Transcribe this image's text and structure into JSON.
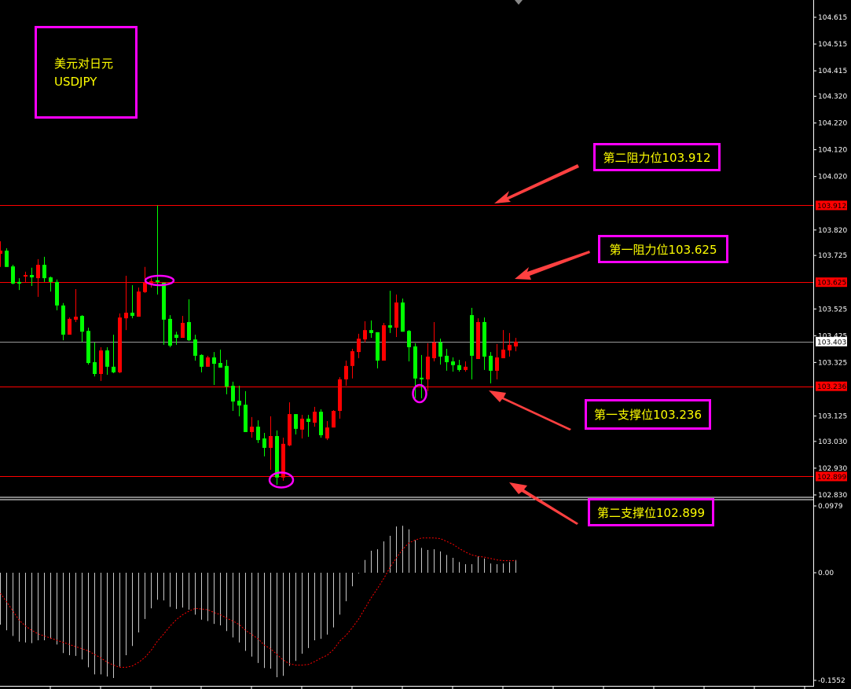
{
  "title_box": {
    "line1": "美元对日元",
    "line2": "USDJPY"
  },
  "levels": [
    {
      "label": "第二阻力位103.912",
      "price": 103.912,
      "tag": "103.912",
      "color": "#ff0000"
    },
    {
      "label": "第一阻力位103.625",
      "price": 103.625,
      "tag": "103.625",
      "color": "#ff0000"
    },
    {
      "label": "第一支撑位103.236",
      "price": 103.236,
      "tag": "103.236",
      "color": "#ff0000"
    },
    {
      "label": "第二支撑位102.899",
      "price": 102.899,
      "tag": "102.899",
      "color": "#ff0000"
    }
  ],
  "current_price": {
    "value": 103.403,
    "tag": "103.403"
  },
  "colors": {
    "bull": "#ff0000",
    "bear": "#00ff00",
    "background": "#000000",
    "label_border": "#ff00ff",
    "label_text": "#ffff00",
    "arrow": "#ff4040",
    "highlight_ellipse": "#ff00ff",
    "histogram": "#c8c8c8",
    "signal": "#ff0000"
  },
  "chart_data": [
    {
      "type": "candlestick",
      "symbol": "USDJPY",
      "ylim": [
        102.83,
        104.615
      ],
      "yticks": [
        "104.615",
        "104.515",
        "104.415",
        "104.320",
        "104.220",
        "104.120",
        "104.020",
        "103.820",
        "103.725",
        "103.525",
        "103.425",
        "103.325",
        "103.125",
        "103.030",
        "102.930",
        "102.830"
      ],
      "ohlc": [
        [
          103.731,
          103.778,
          103.682,
          103.743
        ],
        [
          103.743,
          103.752,
          103.682,
          103.682
        ],
        [
          103.684,
          103.69,
          103.617,
          103.62
        ],
        [
          103.626,
          103.64,
          103.596,
          103.62
        ],
        [
          103.646,
          103.664,
          103.626,
          103.652
        ],
        [
          103.652,
          103.679,
          103.611,
          103.643
        ],
        [
          103.64,
          103.711,
          103.57,
          103.69
        ],
        [
          103.69,
          103.72,
          103.626,
          103.64
        ],
        [
          103.643,
          103.646,
          103.59,
          103.626
        ],
        [
          103.626,
          103.635,
          103.52,
          103.538
        ],
        [
          103.538,
          103.547,
          103.408,
          103.429
        ],
        [
          103.429,
          103.493,
          103.429,
          103.488
        ],
        [
          103.485,
          103.599,
          103.476,
          103.496
        ],
        [
          103.499,
          103.502,
          103.402,
          103.44
        ],
        [
          103.443,
          103.455,
          103.317,
          103.323
        ],
        [
          103.326,
          103.4,
          103.273,
          103.282
        ],
        [
          103.282,
          103.382,
          103.256,
          103.37
        ],
        [
          103.37,
          103.382,
          103.279,
          103.309
        ],
        [
          103.309,
          103.429,
          103.285,
          103.288
        ],
        [
          103.288,
          103.508,
          103.285,
          103.493
        ],
        [
          103.49,
          103.649,
          103.446,
          103.511
        ],
        [
          103.511,
          103.614,
          103.49,
          103.499
        ],
        [
          103.496,
          103.605,
          103.496,
          103.59
        ],
        [
          103.588,
          103.682,
          103.585,
          103.623
        ],
        [
          103.62,
          103.64,
          103.605,
          103.629
        ],
        [
          103.632,
          103.912,
          103.579,
          103.626
        ],
        [
          103.623,
          103.623,
          103.391,
          103.485
        ],
        [
          103.488,
          103.502,
          103.382,
          103.388
        ],
        [
          103.429,
          103.44,
          103.391,
          103.417
        ],
        [
          103.417,
          103.499,
          103.417,
          103.473
        ],
        [
          103.476,
          103.561,
          103.405,
          103.408
        ],
        [
          103.411,
          103.429,
          103.332,
          103.35
        ],
        [
          103.353,
          103.356,
          103.288,
          103.309
        ],
        [
          103.309,
          103.35,
          103.309,
          103.344
        ],
        [
          103.344,
          103.364,
          103.241,
          103.32
        ],
        [
          103.323,
          103.373,
          103.306,
          103.306
        ],
        [
          103.312,
          103.335,
          103.206,
          103.235
        ],
        [
          103.238,
          103.253,
          103.144,
          103.179
        ],
        [
          103.182,
          103.238,
          103.124,
          103.164
        ],
        [
          103.167,
          103.218,
          103.065,
          103.065
        ],
        [
          103.065,
          103.121,
          103.044,
          103.085
        ],
        [
          103.085,
          103.109,
          103.024,
          103.035
        ],
        [
          103.041,
          103.062,
          102.974,
          103.006
        ],
        [
          103.006,
          103.124,
          102.924,
          103.05
        ],
        [
          103.05,
          103.071,
          102.868,
          102.895
        ],
        [
          102.895,
          103.044,
          102.883,
          103.021
        ],
        [
          103.015,
          103.176,
          103.012,
          103.132
        ],
        [
          103.132,
          103.132,
          103.056,
          103.077
        ],
        [
          103.074,
          103.129,
          103.041,
          103.115
        ],
        [
          103.115,
          103.129,
          103.047,
          103.103
        ],
        [
          103.1,
          103.159,
          103.085,
          103.141
        ],
        [
          103.141,
          103.15,
          103.044,
          103.053
        ],
        [
          103.041,
          103.106,
          103.035,
          103.082
        ],
        [
          103.082,
          103.147,
          103.082,
          103.144
        ],
        [
          103.144,
          103.27,
          103.115,
          103.262
        ],
        [
          103.262,
          103.332,
          103.238,
          103.312
        ],
        [
          103.312,
          103.376,
          103.265,
          103.367
        ],
        [
          103.364,
          103.432,
          103.341,
          103.414
        ],
        [
          103.411,
          103.479,
          103.4,
          103.446
        ],
        [
          103.446,
          103.482,
          103.417,
          103.435
        ],
        [
          103.438,
          103.438,
          103.303,
          103.332
        ],
        [
          103.332,
          103.473,
          103.332,
          103.464
        ],
        [
          103.464,
          103.593,
          103.435,
          103.455
        ],
        [
          103.455,
          103.579,
          103.42,
          103.549
        ],
        [
          103.549,
          103.564,
          103.44,
          103.44
        ],
        [
          103.443,
          103.446,
          103.329,
          103.382
        ],
        [
          103.385,
          103.397,
          103.191,
          103.265
        ],
        [
          103.268,
          103.353,
          103.191,
          103.262
        ],
        [
          103.262,
          103.397,
          103.218,
          103.347
        ],
        [
          103.341,
          103.476,
          103.329,
          103.4
        ],
        [
          103.4,
          103.414,
          103.317,
          103.347
        ],
        [
          103.35,
          103.376,
          103.294,
          103.326
        ],
        [
          103.329,
          103.344,
          103.291,
          103.315
        ],
        [
          103.315,
          103.335,
          103.291,
          103.297
        ],
        [
          103.297,
          103.329,
          103.291,
          103.309
        ],
        [
          103.502,
          103.529,
          103.262,
          103.35
        ],
        [
          103.338,
          103.49,
          103.338,
          103.476
        ],
        [
          103.476,
          103.493,
          103.297,
          103.347
        ],
        [
          103.35,
          103.364,
          103.247,
          103.294
        ],
        [
          103.294,
          103.394,
          103.262,
          103.344
        ],
        [
          103.341,
          103.446,
          103.341,
          103.373
        ],
        [
          103.37,
          103.435,
          103.347,
          103.391
        ],
        [
          103.385,
          103.417,
          103.367,
          103.403
        ]
      ]
    },
    {
      "type": "bar",
      "indicator": "MACD",
      "ylim": [
        -0.1552,
        0.0979
      ],
      "yticks": [
        "0.0979",
        "0.00",
        "-0.1552"
      ],
      "histogram": [
        -0.073,
        -0.081,
        -0.089,
        -0.097,
        -0.098,
        -0.099,
        -0.095,
        -0.095,
        -0.093,
        -0.101,
        -0.113,
        -0.116,
        -0.117,
        -0.122,
        -0.133,
        -0.143,
        -0.143,
        -0.146,
        -0.148,
        -0.132,
        -0.116,
        -0.103,
        -0.084,
        -0.065,
        -0.05,
        -0.038,
        -0.039,
        -0.048,
        -0.051,
        -0.049,
        -0.052,
        -0.059,
        -0.066,
        -0.068,
        -0.072,
        -0.074,
        -0.082,
        -0.091,
        -0.098,
        -0.11,
        -0.118,
        -0.127,
        -0.134,
        -0.135,
        -0.147,
        -0.145,
        -0.131,
        -0.124,
        -0.114,
        -0.106,
        -0.095,
        -0.093,
        -0.087,
        -0.077,
        -0.059,
        -0.04,
        -0.019,
        -0.001,
        0.018,
        0.031,
        0.033,
        0.044,
        0.052,
        0.065,
        0.066,
        0.061,
        0.046,
        0.035,
        0.032,
        0.033,
        0.03,
        0.025,
        0.021,
        0.015,
        0.012,
        0.012,
        0.023,
        0.02,
        0.013,
        0.012,
        0.013,
        0.015,
        0.018
      ],
      "signal": [
        -0.029,
        -0.041,
        -0.054,
        -0.067,
        -0.075,
        -0.081,
        -0.086,
        -0.089,
        -0.092,
        -0.095,
        -0.098,
        -0.101,
        -0.104,
        -0.107,
        -0.11,
        -0.115,
        -0.12,
        -0.126,
        -0.13,
        -0.133,
        -0.133,
        -0.131,
        -0.126,
        -0.119,
        -0.109,
        -0.096,
        -0.086,
        -0.075,
        -0.066,
        -0.059,
        -0.054,
        -0.05,
        -0.051,
        -0.052,
        -0.056,
        -0.059,
        -0.064,
        -0.068,
        -0.073,
        -0.081,
        -0.087,
        -0.093,
        -0.102,
        -0.107,
        -0.115,
        -0.123,
        -0.128,
        -0.13,
        -0.13,
        -0.129,
        -0.125,
        -0.12,
        -0.116,
        -0.108,
        -0.096,
        -0.088,
        -0.077,
        -0.065,
        -0.05,
        -0.035,
        -0.022,
        -0.008,
        0.008,
        0.021,
        0.033,
        0.042,
        0.046,
        0.049,
        0.049,
        0.049,
        0.048,
        0.044,
        0.04,
        0.034,
        0.029,
        0.025,
        0.023,
        0.022,
        0.02,
        0.018,
        0.017,
        0.017,
        0.017
      ]
    }
  ]
}
